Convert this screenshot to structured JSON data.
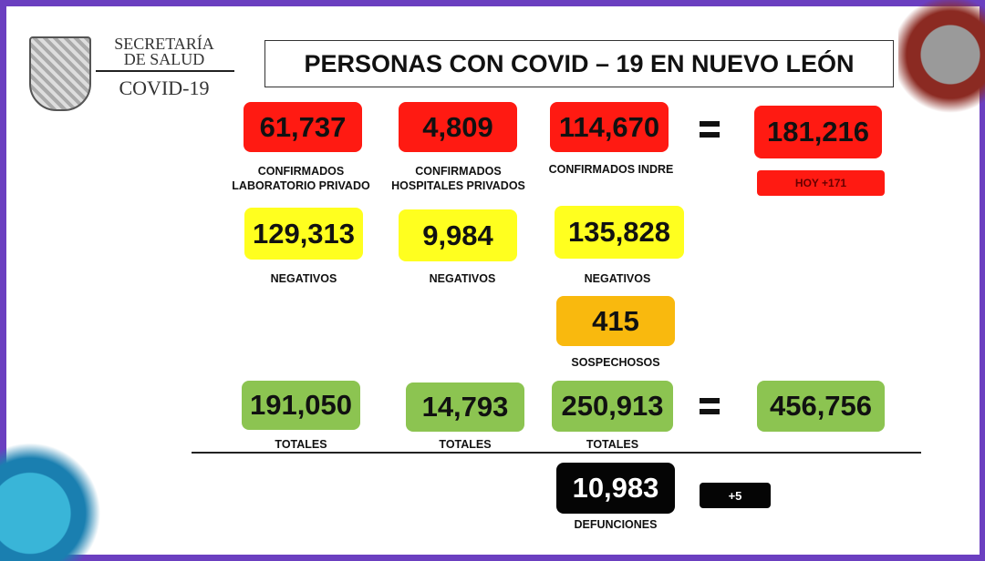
{
  "header": {
    "org_line1": "SECRETARÍA",
    "org_line2": "DE SALUD",
    "program": "COVID-19",
    "title": "PERSONAS CON COVID – 19 EN NUEVO LEÓN"
  },
  "confirmed": {
    "private_lab": "61,737",
    "private_lab_label": "CONFIRMADOS LABORATORIO PRIVADO",
    "private_hosp": "4,809",
    "private_hosp_label": "CONFIRMADOS HOSPITALES PRIVADOS",
    "indre": "114,670",
    "indre_label": "CONFIRMADOS INDRE",
    "total": "181,216",
    "today": "HOY +171"
  },
  "negatives": {
    "private_lab": "129,313",
    "private_hosp": "9,984",
    "indre": "135,828",
    "label": "NEGATIVOS"
  },
  "suspects": {
    "value": "415",
    "label": "SOSPECHOSOS"
  },
  "totals": {
    "private_lab": "191,050",
    "private_hosp": "14,793",
    "indre": "250,913",
    "grand": "456,756",
    "label": "TOTALES"
  },
  "deaths": {
    "value": "10,983",
    "today": "+5",
    "label": "DEFUNCIONES"
  },
  "colors": {
    "border": "#6b3fc0",
    "confirmed": "#ff1a12",
    "negative": "#ffff1f",
    "suspect": "#f9b90e",
    "total": "#8cc451",
    "deaths": "#050505"
  }
}
